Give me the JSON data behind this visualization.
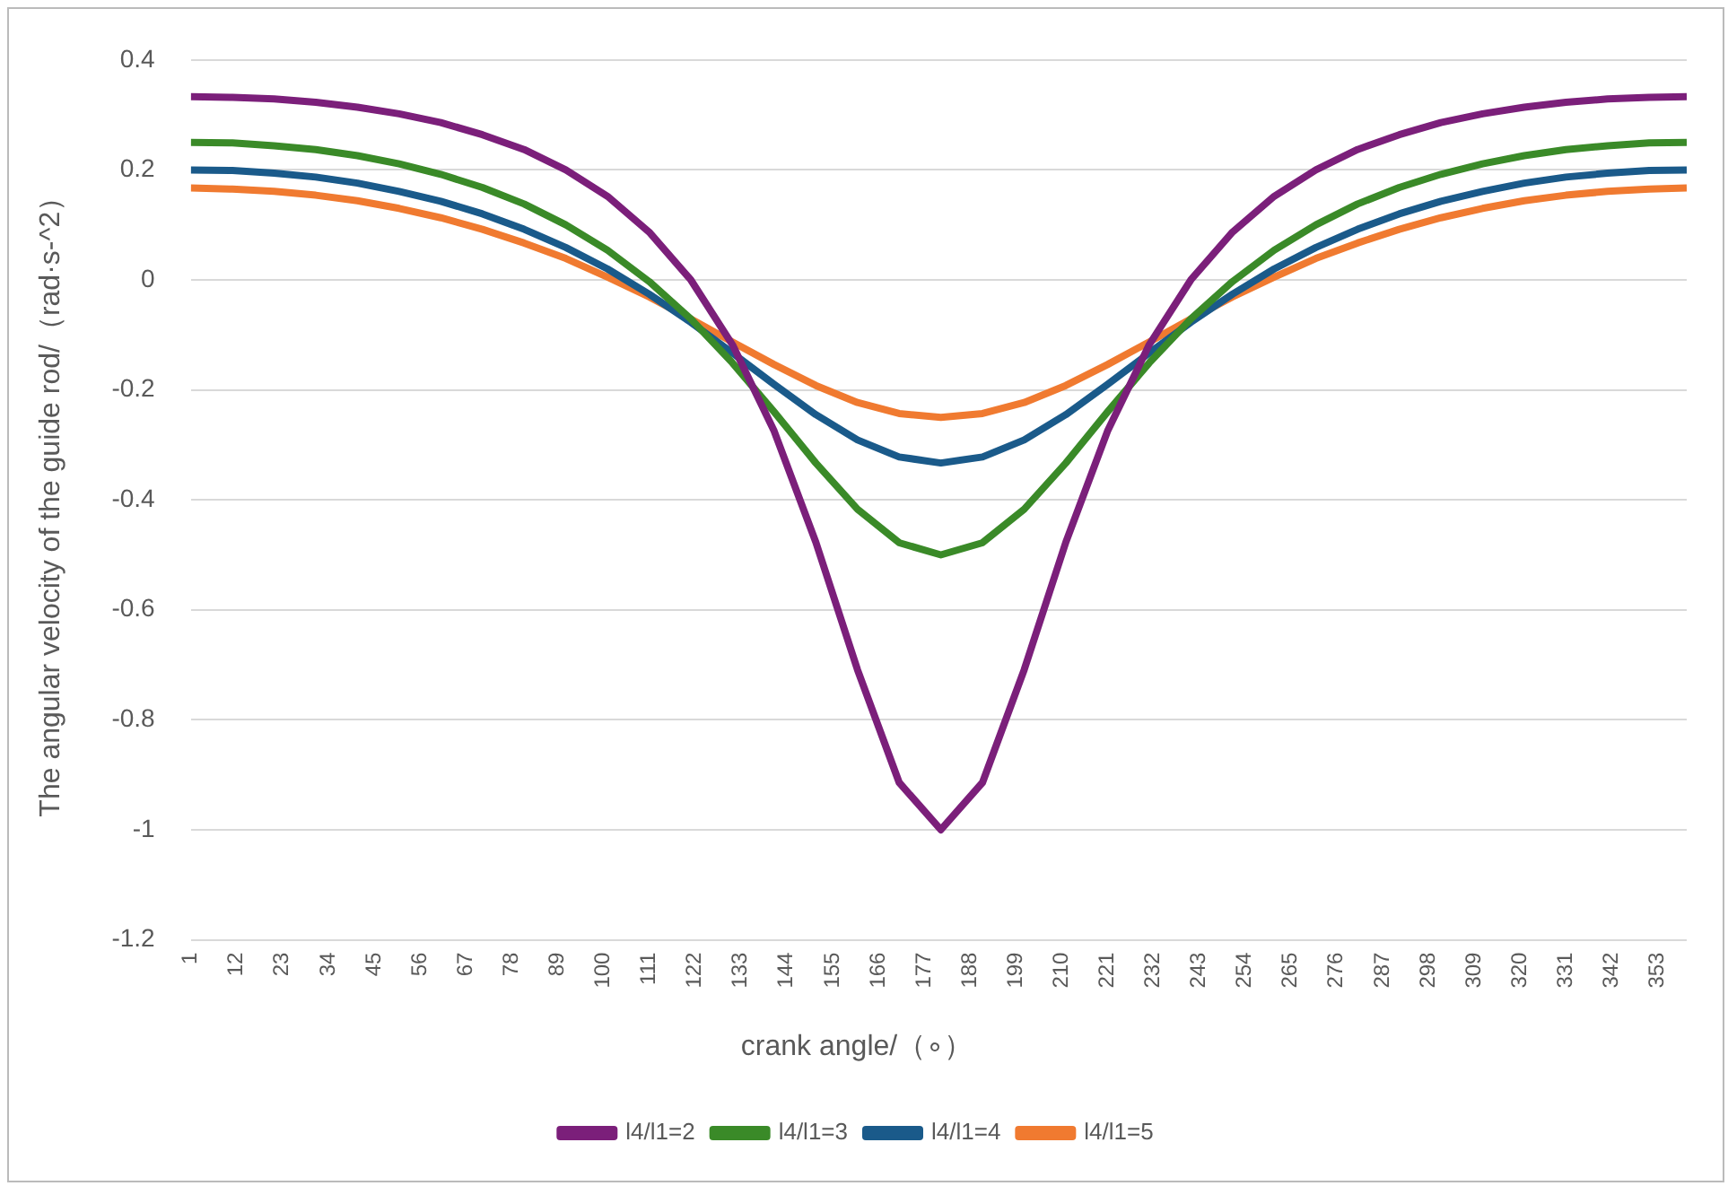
{
  "chart_data": {
    "type": "line",
    "xlabel": "crank angle/（∘）",
    "ylabel": "The angular velocity of the guide rod/（rad·s-^2）",
    "x": [
      1,
      11,
      21,
      31,
      41,
      51,
      61,
      71,
      81,
      91,
      101,
      111,
      121,
      131,
      141,
      151,
      161,
      171,
      181,
      191,
      201,
      211,
      221,
      231,
      241,
      251,
      261,
      271,
      281,
      291,
      301,
      311,
      321,
      331,
      341,
      351,
      360
    ],
    "series": [
      {
        "name": "l4/l1=2",
        "color": "#7b1f7a",
        "values": [
          0.333,
          0.332,
          0.329,
          0.323,
          0.314,
          0.302,
          0.286,
          0.264,
          0.237,
          0.2,
          0.152,
          0.087,
          0,
          -0.118,
          -0.275,
          -0.477,
          -0.709,
          -0.914,
          -1,
          -0.914,
          -0.709,
          -0.477,
          -0.275,
          -0.118,
          0,
          0.087,
          0.152,
          0.2,
          0.237,
          0.264,
          0.286,
          0.302,
          0.314,
          0.323,
          0.329,
          0.332,
          0.333
        ]
      },
      {
        "name": "l4/l1=3",
        "color": "#3a8a28",
        "values": [
          0.25,
          0.249,
          0.244,
          0.237,
          0.226,
          0.211,
          0.192,
          0.168,
          0.138,
          0.1,
          0.054,
          -0.003,
          -0.071,
          -0.151,
          -0.24,
          -0.333,
          -0.417,
          -0.478,
          -0.5,
          -0.478,
          -0.417,
          -0.333,
          -0.24,
          -0.151,
          -0.071,
          -0.003,
          0.054,
          0.1,
          0.138,
          0.168,
          0.192,
          0.211,
          0.226,
          0.237,
          0.244,
          0.249,
          0.25
        ]
      },
      {
        "name": "l4/l1=4",
        "color": "#1a5a8a",
        "values": [
          0.2,
          0.199,
          0.194,
          0.187,
          0.176,
          0.161,
          0.143,
          0.12,
          0.092,
          0.059,
          0.02,
          -0.026,
          -0.077,
          -0.133,
          -0.19,
          -0.245,
          -0.291,
          -0.322,
          -0.333,
          -0.322,
          -0.291,
          -0.245,
          -0.19,
          -0.133,
          -0.077,
          -0.026,
          0.02,
          0.059,
          0.092,
          0.12,
          0.143,
          0.161,
          0.176,
          0.187,
          0.194,
          0.199,
          0.2
        ]
      },
      {
        "name": "l4/l1=5",
        "color": "#f07a30",
        "values": [
          0.167,
          0.165,
          0.161,
          0.154,
          0.144,
          0.13,
          0.113,
          0.092,
          0.067,
          0.039,
          0.005,
          -0.031,
          -0.071,
          -0.113,
          -0.154,
          -0.192,
          -0.223,
          -0.243,
          -0.25,
          -0.243,
          -0.223,
          -0.192,
          -0.154,
          -0.113,
          -0.071,
          -0.031,
          0.005,
          0.039,
          0.067,
          0.092,
          0.113,
          0.13,
          0.144,
          0.154,
          0.161,
          0.165,
          0.167
        ]
      }
    ],
    "xlim": [
      1,
      360
    ],
    "xticks": [
      1,
      12,
      23,
      34,
      45,
      56,
      67,
      78,
      89,
      100,
      111,
      122,
      133,
      144,
      155,
      166,
      177,
      188,
      199,
      210,
      221,
      232,
      243,
      254,
      265,
      276,
      287,
      298,
      309,
      320,
      331,
      342,
      353
    ],
    "ylim": [
      -1.2,
      0.4
    ],
    "yticks": [
      -1.2,
      -1,
      -0.8,
      -0.6,
      -0.4,
      -0.2,
      0,
      0.2,
      0.4
    ],
    "grid": "y",
    "legend": "bottom",
    "marker": "none",
    "line_style": "solid"
  }
}
